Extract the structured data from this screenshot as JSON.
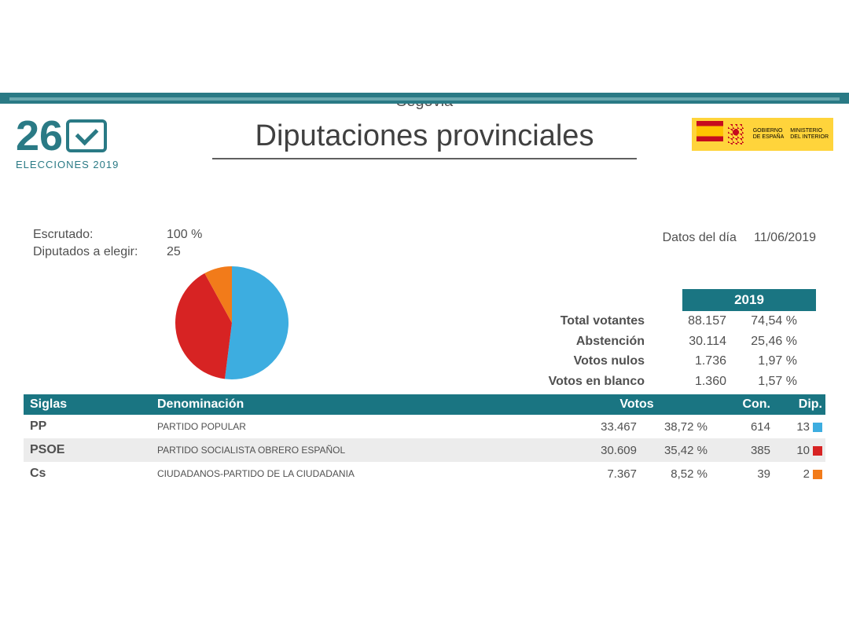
{
  "header": {
    "logo_number": "26",
    "logo_subtitle": "ELECCIONES 2019",
    "title": "Diputaciones provinciales",
    "gov_label1": "GOBIERNO\nDE ESPAÑA",
    "gov_label2": "MINISTERIO\nDEL INTERIOR"
  },
  "subtitle": "Segovia",
  "info": {
    "escrutado_label": "Escrutado:",
    "escrutado_value": "100 %",
    "diputados_label": "Diputados a elegir:",
    "diputados_value": "25",
    "datos_label": "Datos del día",
    "datos_value": "11/06/2019"
  },
  "pie": {
    "slices": [
      {
        "label": "PP",
        "value": 13,
        "color": "#3dade0"
      },
      {
        "label": "PSOE",
        "value": 10,
        "color": "#d72323"
      },
      {
        "label": "Cs",
        "value": 2,
        "color": "#f27b1a"
      }
    ],
    "background": "#ffffff"
  },
  "stats": {
    "year": "2019",
    "rows": [
      {
        "label": "Total votantes",
        "v1": "88.157",
        "v2": "74,54 %"
      },
      {
        "label": "Abstención",
        "v1": "30.114",
        "v2": "25,46 %"
      },
      {
        "label": "Votos nulos",
        "v1": "1.736",
        "v2": "1,97 %"
      },
      {
        "label": "Votos en blanco",
        "v1": "1.360",
        "v2": "1,57 %"
      }
    ]
  },
  "results": {
    "columns": {
      "siglas": "Siglas",
      "denom": "Denominación",
      "votos": "Votos",
      "con": "Con.",
      "dip": "Dip."
    },
    "rows": [
      {
        "siglas": "PP",
        "denom": "PARTIDO POPULAR",
        "votos": "33.467",
        "pct": "38,72 %",
        "con": "614",
        "dip": "13",
        "color": "#3dade0"
      },
      {
        "siglas": "PSOE",
        "denom": "PARTIDO SOCIALISTA OBRERO ESPAÑOL",
        "votos": "30.609",
        "pct": "35,42 %",
        "con": "385",
        "dip": "10",
        "color": "#d72323"
      },
      {
        "siglas": "Cs",
        "denom": "CIUDADANOS-PARTIDO DE LA CIUDADANIA",
        "votos": "7.367",
        "pct": "8,52 %",
        "con": "39",
        "dip": "2",
        "color": "#f27b1a"
      }
    ],
    "header_bg": "#1a7582",
    "alt_row_bg": "#ececec"
  }
}
